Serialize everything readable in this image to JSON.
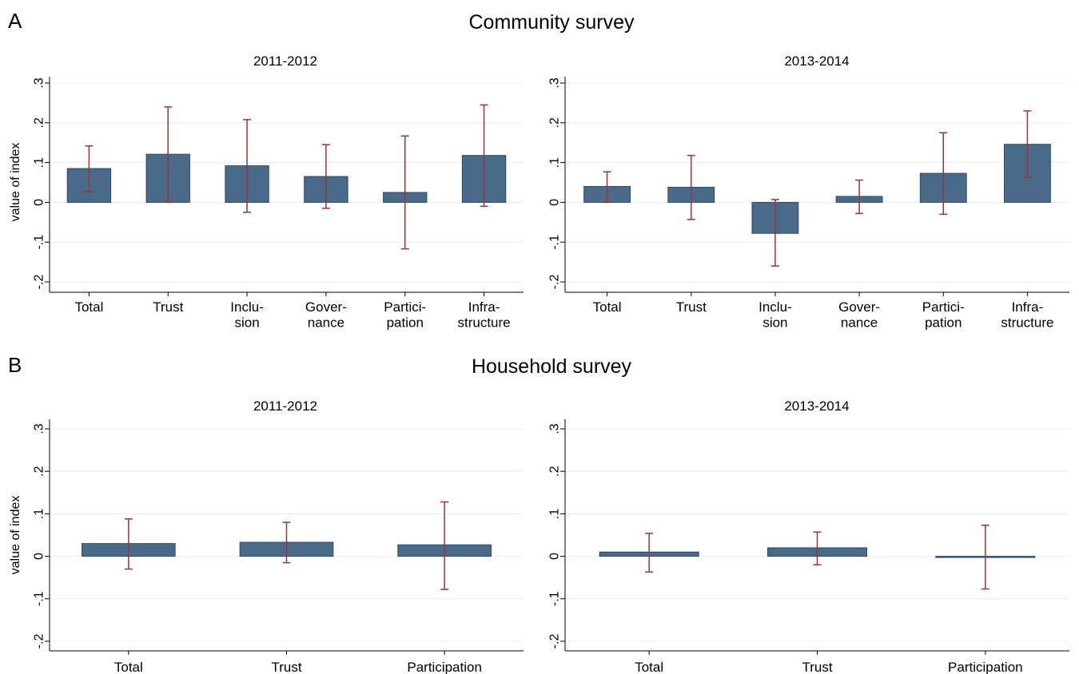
{
  "sections": [
    {
      "letter": "A",
      "title": "Community survey",
      "ylabel": "value of index",
      "panels": [
        {
          "subtitle": "2011-2012",
          "chart_data": {
            "type": "bar",
            "categories": [
              [
                "Total"
              ],
              [
                "Trust"
              ],
              [
                "Inclu-",
                "sion"
              ],
              [
                "Gover-",
                "nance"
              ],
              [
                "Partici-",
                "pation"
              ],
              [
                "Infra-",
                "structure"
              ]
            ],
            "values": [
              0.085,
              0.121,
              0.092,
              0.065,
              0.025,
              0.118
            ],
            "ci_low": [
              0.027,
              0.0,
              -0.025,
              -0.015,
              -0.117,
              -0.01
            ],
            "ci_high": [
              0.142,
              0.24,
              0.208,
              0.145,
              0.167,
              0.245
            ],
            "ylim": [
              -0.2,
              0.3
            ],
            "yticks": [
              -0.2,
              -0.1,
              0,
              0.1,
              0.2,
              0.3
            ],
            "ytick_labels": [
              "-.2",
              "-.1",
              "0",
              ".1",
              ".2",
              ".3"
            ],
            "grid": true
          }
        },
        {
          "subtitle": "2013-2014",
          "chart_data": {
            "type": "bar",
            "categories": [
              [
                "Total"
              ],
              [
                "Trust"
              ],
              [
                "Inclu-",
                "sion"
              ],
              [
                "Gover-",
                "nance"
              ],
              [
                "Partici-",
                "pation"
              ],
              [
                "Infra-",
                "structure"
              ]
            ],
            "values": [
              0.04,
              0.038,
              -0.078,
              0.015,
              0.073,
              0.146
            ],
            "ci_low": [
              0.0,
              -0.043,
              -0.16,
              -0.028,
              -0.03,
              0.063
            ],
            "ci_high": [
              0.077,
              0.118,
              0.007,
              0.056,
              0.175,
              0.23
            ],
            "ylim": [
              -0.2,
              0.3
            ],
            "yticks": [
              -0.2,
              -0.1,
              0,
              0.1,
              0.2,
              0.3
            ],
            "ytick_labels": [
              "-.2",
              "-.1",
              "0",
              ".1",
              ".2",
              ".3"
            ],
            "grid": true
          }
        }
      ]
    },
    {
      "letter": "B",
      "title": "Household survey",
      "ylabel": "value of index",
      "panels": [
        {
          "subtitle": "2011-2012",
          "chart_data": {
            "type": "bar",
            "categories": [
              [
                "Total"
              ],
              [
                "Trust"
              ],
              [
                "Participation"
              ]
            ],
            "values": [
              0.03,
              0.033,
              0.027
            ],
            "ci_low": [
              -0.03,
              -0.015,
              -0.078
            ],
            "ci_high": [
              0.088,
              0.08,
              0.128
            ],
            "ylim": [
              -0.2,
              0.3
            ],
            "yticks": [
              -0.2,
              -0.1,
              0,
              0.1,
              0.2,
              0.3
            ],
            "ytick_labels": [
              "-.2",
              "-.1",
              "0",
              ".1",
              ".2",
              ".3"
            ],
            "grid": true
          }
        },
        {
          "subtitle": "2013-2014",
          "chart_data": {
            "type": "bar",
            "categories": [
              [
                "Total"
              ],
              [
                "Trust"
              ],
              [
                "Participation"
              ]
            ],
            "values": [
              0.01,
              0.02,
              0.0
            ],
            "ci_low": [
              -0.037,
              -0.02,
              -0.077
            ],
            "ci_high": [
              0.054,
              0.057,
              0.073
            ],
            "ylim": [
              -0.2,
              0.3
            ],
            "yticks": [
              -0.2,
              -0.1,
              0,
              0.1,
              0.2,
              0.3
            ],
            "ytick_labels": [
              "-.2",
              "-.1",
              "0",
              ".1",
              ".2",
              ".3"
            ],
            "grid": true
          }
        }
      ]
    }
  ]
}
